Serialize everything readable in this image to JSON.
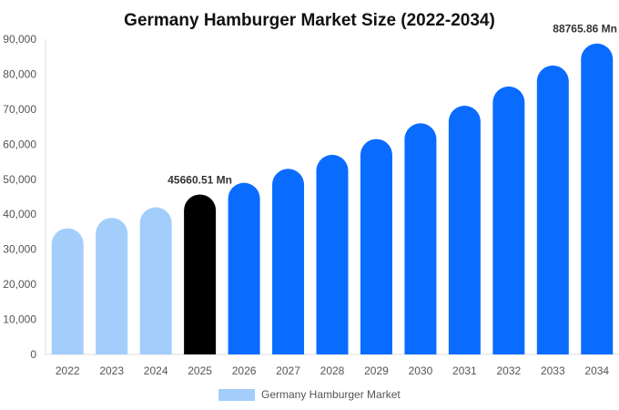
{
  "chart_data": {
    "type": "bar",
    "title": "Germany Hamburger Market Size (2022-2034)",
    "xlabel": "",
    "ylabel": "",
    "categories": [
      "2022",
      "2023",
      "2024",
      "2025",
      "2026",
      "2027",
      "2028",
      "2029",
      "2030",
      "2031",
      "2032",
      "2033",
      "2034"
    ],
    "series": [
      {
        "name": "Germany Hamburger Market",
        "values": [
          36000,
          39000,
          42000,
          45660.51,
          49000,
          53000,
          57000,
          61500,
          66000,
          71000,
          76500,
          82500,
          88765.86
        ]
      }
    ],
    "ylim": [
      0,
      90000
    ],
    "yticks": [
      "0",
      "10,000",
      "20,000",
      "30,000",
      "40,000",
      "50,000",
      "60,000",
      "70,000",
      "80,000",
      "90,000"
    ],
    "data_labels": [
      {
        "index": 3,
        "text": "45660.51 Mn"
      },
      {
        "index": 12,
        "text": "88765.86 Mn"
      }
    ],
    "colors": {
      "historical": "#a3cefb",
      "base_year": "#000000",
      "forecast": "#0a6cff"
    },
    "historical_count": 3,
    "base_index": 3,
    "legend": "bottom-center",
    "grid": false
  }
}
